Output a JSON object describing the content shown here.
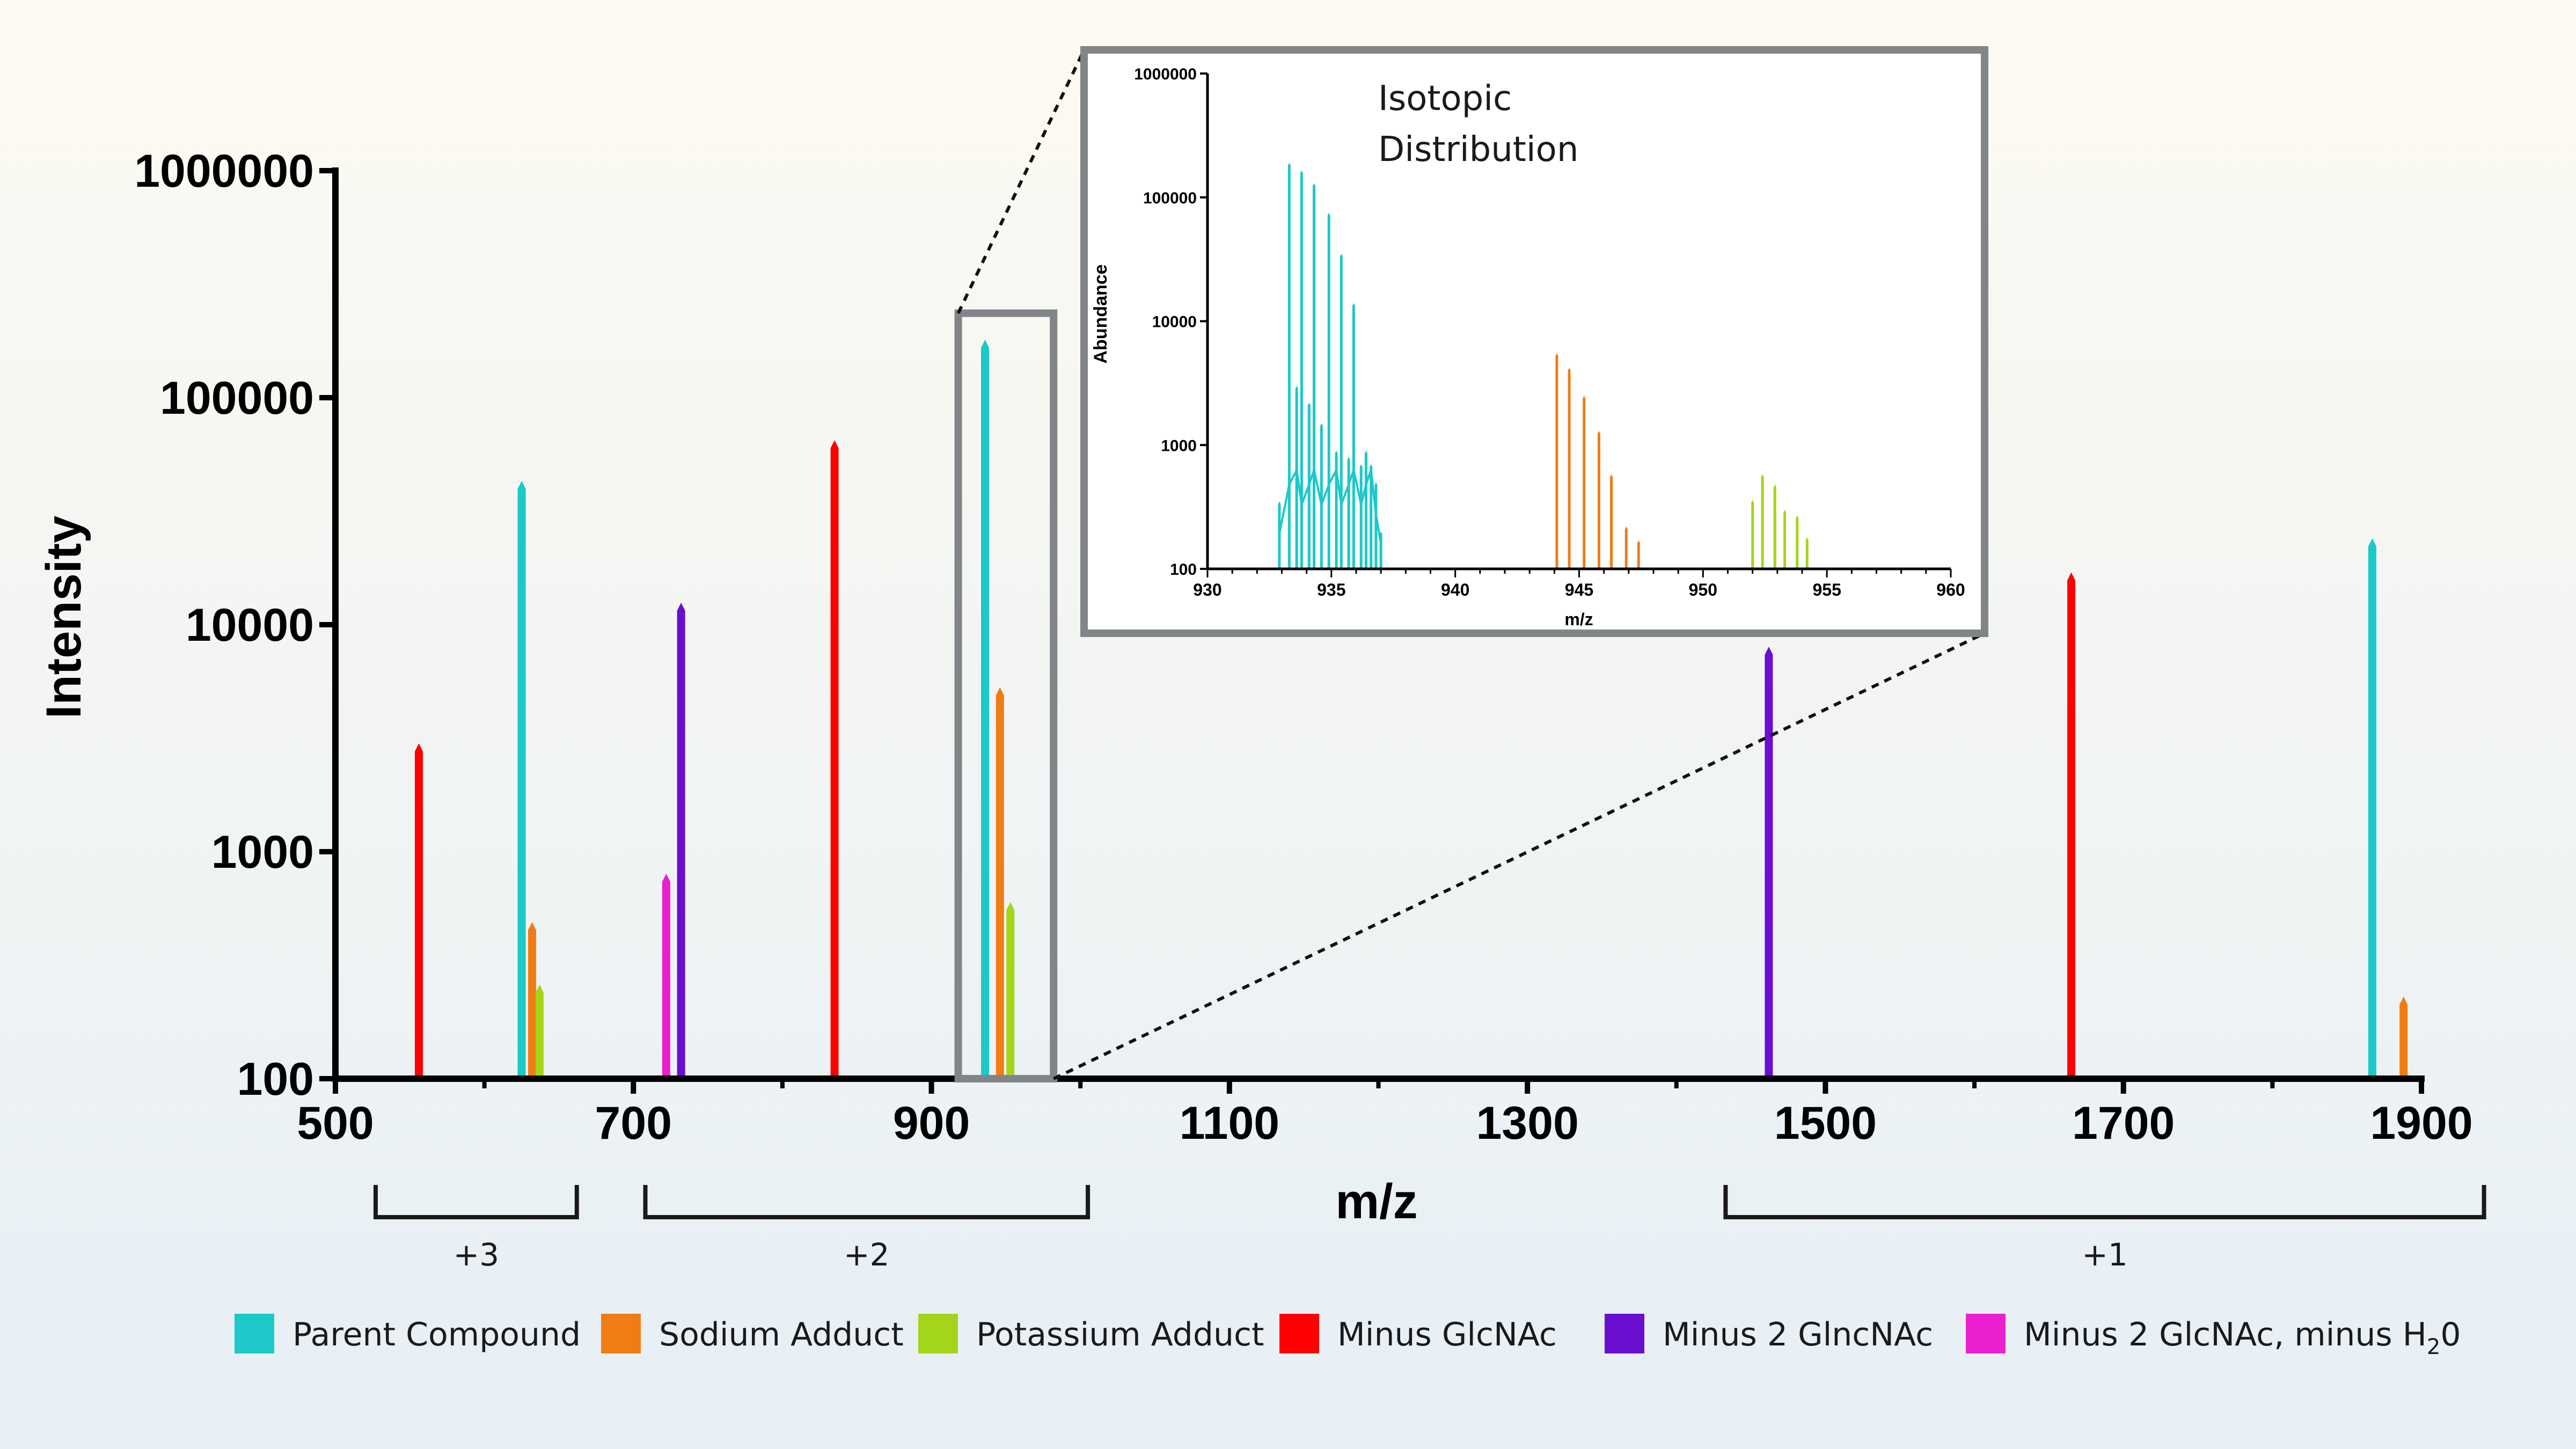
{
  "chart_data": [
    {
      "type": "bar",
      "role": "main-spectrum",
      "xlabel": "m/z",
      "ylabel": "Intensity",
      "xlim": [
        500,
        1900
      ],
      "x_ticks": [
        500,
        700,
        900,
        1100,
        1300,
        1500,
        1700,
        1900
      ],
      "ylim": [
        100,
        1000000
      ],
      "y_scale": "log",
      "y_ticks": [
        100,
        1000,
        10000,
        100000,
        1000000
      ],
      "series": [
        {
          "name": "Parent Compound",
          "color": "#1cc8c8",
          "peaks": [
            {
              "x": 625,
              "y": 43000
            },
            {
              "x": 936,
              "y": 180000
            },
            {
              "x": 1867,
              "y": 24000
            }
          ]
        },
        {
          "name": "Sodium Adduct",
          "color": "#f07d14",
          "peaks": [
            {
              "x": 632,
              "y": 490
            },
            {
              "x": 946,
              "y": 5300
            },
            {
              "x": 1888,
              "y": 230
            }
          ]
        },
        {
          "name": "Potassium Adduct",
          "color": "#a3d51a",
          "peaks": [
            {
              "x": 637,
              "y": 260
            },
            {
              "x": 953,
              "y": 600
            }
          ]
        },
        {
          "name": "Minus GlcNAc",
          "color": "#ff0000",
          "peaks": [
            {
              "x": 556,
              "y": 3000
            },
            {
              "x": 835,
              "y": 65000
            },
            {
              "x": 1665,
              "y": 17000
            }
          ]
        },
        {
          "name": "Minus 2 GlncNAc",
          "color": "#6a0fd0",
          "peaks": [
            {
              "x": 732,
              "y": 12500
            },
            {
              "x": 1462,
              "y": 8000
            }
          ]
        },
        {
          "name": "Minus 2 GlcNAc, minus H2O",
          "color": "#ea1fd0",
          "peaks": [
            {
              "x": 722,
              "y": 800
            }
          ]
        }
      ],
      "charge_brackets": [
        {
          "label": "+3",
          "from": 527,
          "to": 662
        },
        {
          "label": "+2",
          "from": 708,
          "to": 1005
        },
        {
          "label": "+1",
          "from": 1433,
          "to": 1942
        }
      ],
      "zoom_region": {
        "x_from": 918,
        "x_to": 982,
        "y_from": 100,
        "y_to": 200000
      }
    },
    {
      "type": "bar",
      "role": "inset",
      "title_line1": "Isotopic",
      "title_line2": "Distribution",
      "xlabel": "m/z",
      "ylabel": "Abundance",
      "xlim": [
        930,
        960
      ],
      "x_ticks": [
        930,
        935,
        940,
        945,
        950,
        955,
        960
      ],
      "ylim": [
        100,
        1000000
      ],
      "y_scale": "log",
      "y_ticks": [
        100,
        1000,
        10000,
        100000,
        1000000
      ],
      "series": [
        {
          "name": "Parent Compound",
          "color": "#1cc8c8",
          "peaks": [
            {
              "x": 932.9,
              "y": 350
            },
            {
              "x": 933.3,
              "y": 190000
            },
            {
              "x": 933.6,
              "y": 3000
            },
            {
              "x": 933.8,
              "y": 165000
            },
            {
              "x": 934.1,
              "y": 2200
            },
            {
              "x": 934.3,
              "y": 130000
            },
            {
              "x": 934.6,
              "y": 1500
            },
            {
              "x": 934.9,
              "y": 75000
            },
            {
              "x": 935.2,
              "y": 900
            },
            {
              "x": 935.4,
              "y": 35000
            },
            {
              "x": 935.7,
              "y": 800
            },
            {
              "x": 935.9,
              "y": 14000
            },
            {
              "x": 936.2,
              "y": 700
            },
            {
              "x": 936.4,
              "y": 900
            },
            {
              "x": 936.6,
              "y": 700
            },
            {
              "x": 936.8,
              "y": 500
            },
            {
              "x": 937.0,
              "y": 200
            }
          ]
        },
        {
          "name": "Sodium Adduct",
          "color": "#f07d14",
          "peaks": [
            {
              "x": 944.1,
              "y": 5500
            },
            {
              "x": 944.6,
              "y": 4200
            },
            {
              "x": 945.2,
              "y": 2500
            },
            {
              "x": 945.8,
              "y": 1300
            },
            {
              "x": 946.3,
              "y": 580
            },
            {
              "x": 946.9,
              "y": 220
            },
            {
              "x": 947.4,
              "y": 170
            }
          ]
        },
        {
          "name": "Potassium Adduct",
          "color": "#a3d51a",
          "peaks": [
            {
              "x": 952.0,
              "y": 360
            },
            {
              "x": 952.4,
              "y": 580
            },
            {
              "x": 952.9,
              "y": 480
            },
            {
              "x": 953.3,
              "y": 300
            },
            {
              "x": 953.8,
              "y": 270
            },
            {
              "x": 954.2,
              "y": 180
            }
          ]
        }
      ]
    }
  ],
  "legend": [
    {
      "label": "Parent Compound",
      "color": "#1cc8c8"
    },
    {
      "label": "Sodium Adduct",
      "color": "#f07d14"
    },
    {
      "label": "Potassium Adduct",
      "color": "#a3d51a"
    },
    {
      "label": "Minus GlcNAc",
      "color": "#ff0000"
    },
    {
      "label": "Minus 2 GlncNAc",
      "color": "#6a0fd0"
    },
    {
      "label": "Minus 2 GlcNAc, minus H",
      "sub": "2",
      "tail": "0",
      "color": "#ea1fd0"
    }
  ]
}
